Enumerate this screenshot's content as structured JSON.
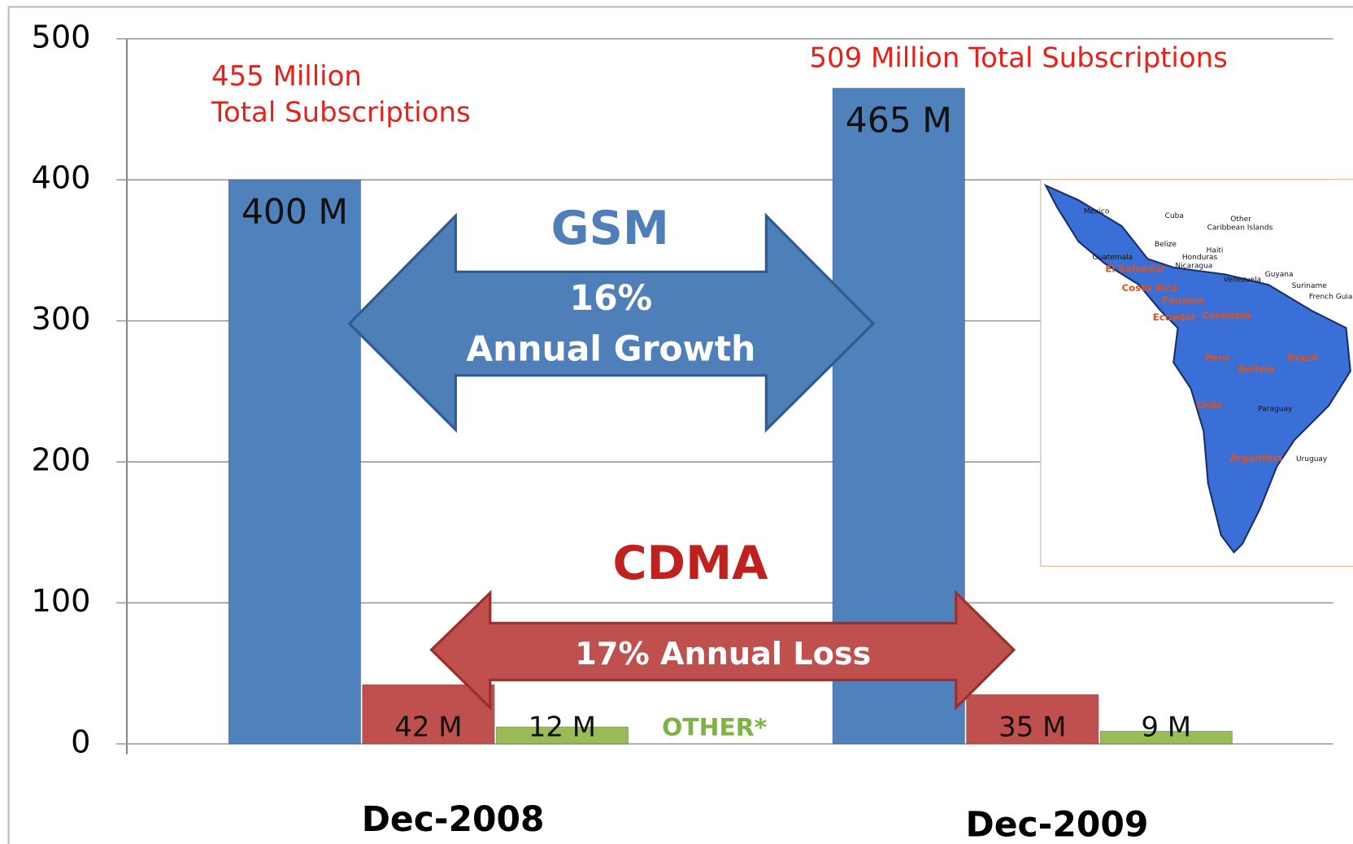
{
  "chart_data": {
    "type": "bar",
    "categories": [
      "Dec-2008",
      "Dec-2009"
    ],
    "series": [
      {
        "name": "GSM",
        "color": "#4f81bd",
        "values": [
          400,
          465
        ],
        "value_labels": [
          "400 M",
          "465 M"
        ]
      },
      {
        "name": "CDMA",
        "color": "#c0504d",
        "values": [
          42,
          35
        ],
        "value_labels": [
          "42 M",
          "35 M"
        ]
      },
      {
        "name": "OTHER*",
        "color": "#9bbb59",
        "values": [
          12,
          9
        ],
        "value_labels": [
          "12 M",
          "9 M"
        ]
      }
    ],
    "ylim": [
      0,
      500
    ],
    "yticks": [
      0,
      100,
      200,
      300,
      400,
      500
    ],
    "grid": true,
    "annotations": {
      "total_2008": [
        "455 Million",
        "Total Subscriptions"
      ],
      "total_2009": "509 Million Total Subscriptions",
      "gsm_growth": [
        "16%",
        "Annual Growth"
      ],
      "cdma_loss": "17%  Annual Loss"
    },
    "map_labels": [
      "Mexico",
      "Cuba",
      "Other",
      "Caribbean Islands",
      "Belize",
      "Haiti",
      "Honduras",
      "Guatemala",
      "Nicaragua",
      "El Salvador",
      "Costa Rica",
      "Panama",
      "Venezuela",
      "Guyana",
      "Suriname",
      "French Guia",
      "Ecuador",
      "Colombia",
      "Peru",
      "Brazil",
      "Bolivia",
      "Chile",
      "Paraguay",
      "Argentina",
      "Uruguay"
    ]
  }
}
